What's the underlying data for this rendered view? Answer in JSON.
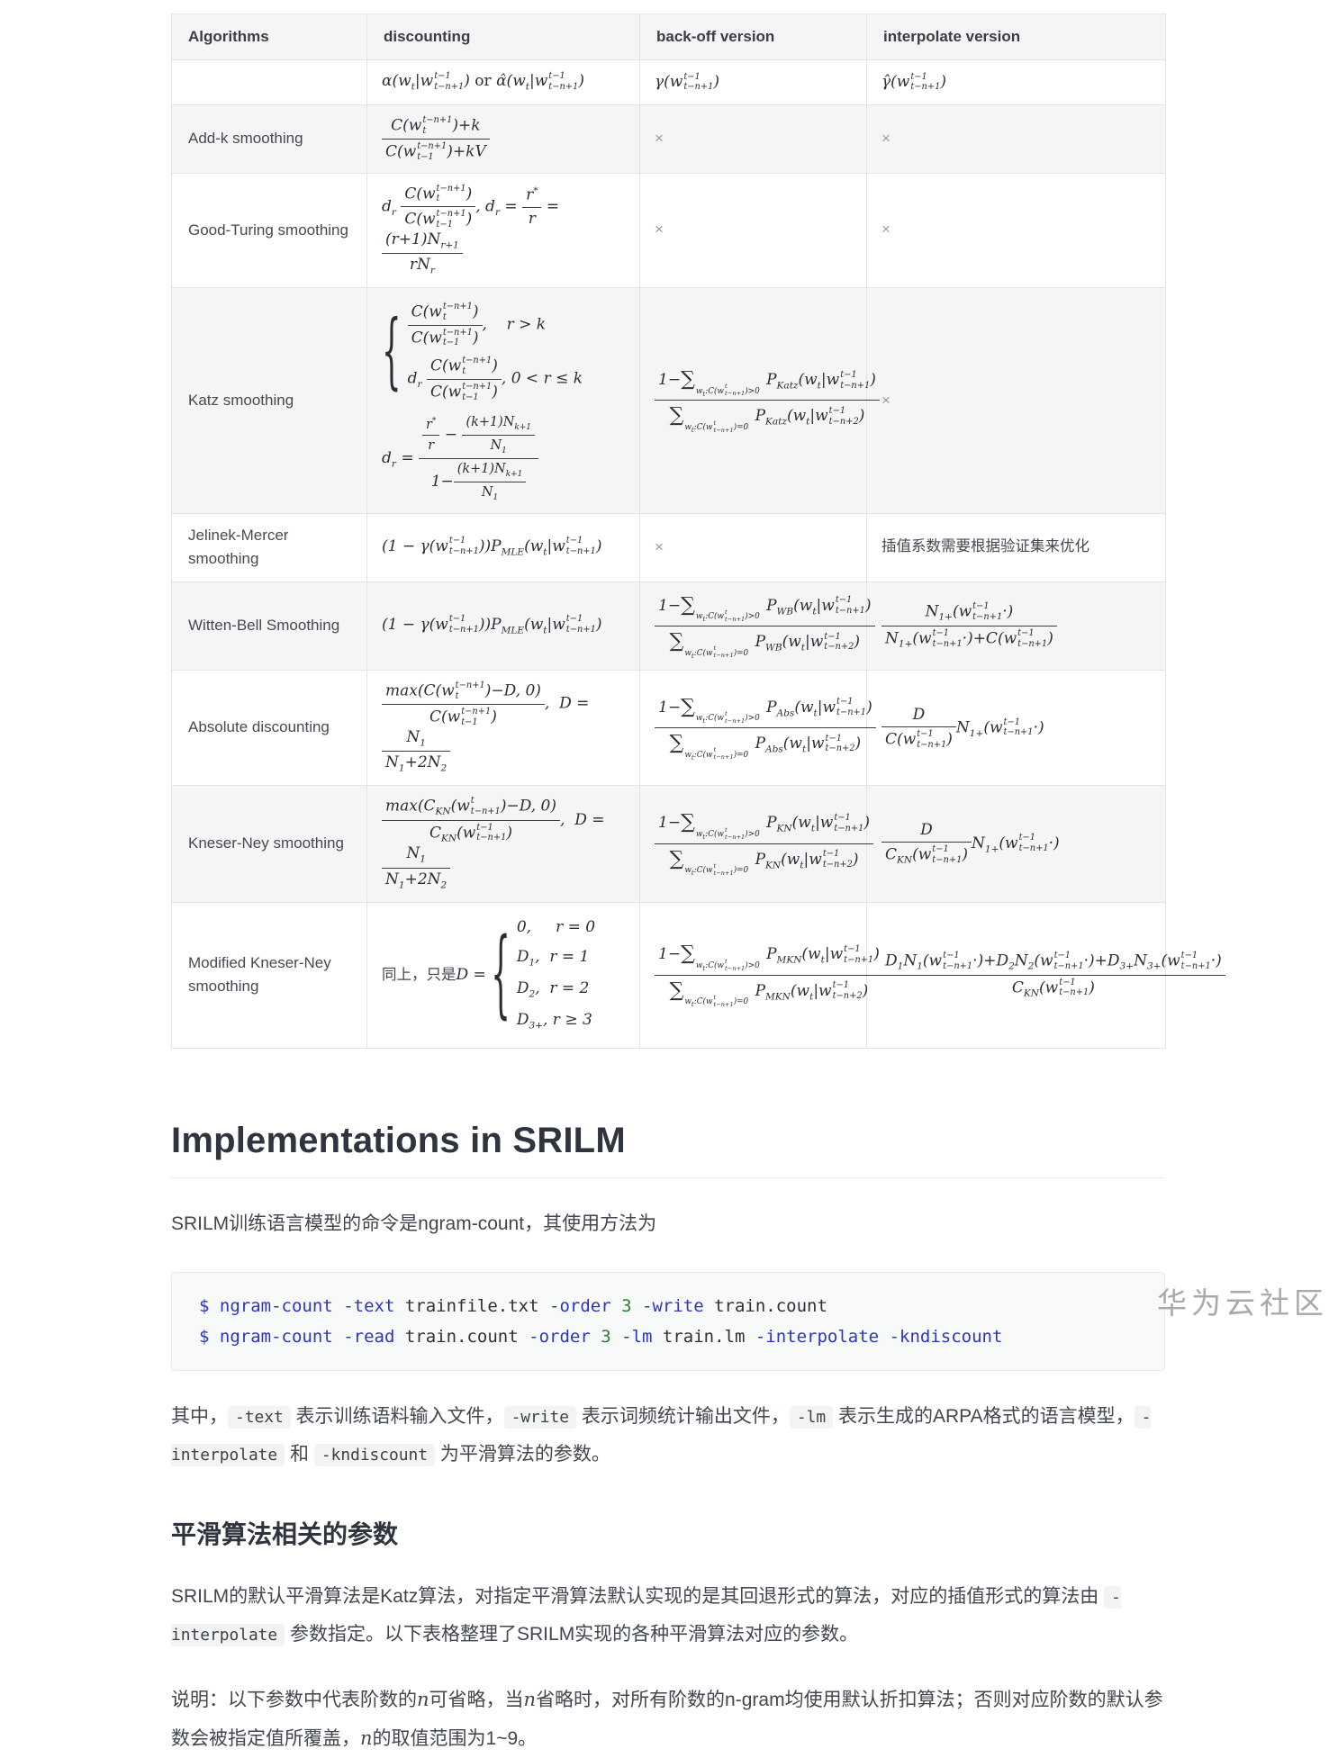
{
  "table": {
    "headers": [
      "Algorithms",
      "discounting",
      "back-off version",
      "interpolate version"
    ],
    "rows": [
      {
        "algorithm": "",
        "cells": [
          "α(w<sub>t</sub>|w<span class='ss'><span>t−1</span><span>t−n+1</span></span>) <span class='r'>or</span> α̂(w<sub>t</sub>|w<span class='ss'><span>t−1</span><span>t−n+1</span></span>)",
          "γ(w<span class='ss'><span>t−1</span><span>t−n+1</span></span>)",
          "γ̂(w<span class='ss'><span>t−1</span><span>t−n+1</span></span>)"
        ]
      },
      {
        "algorithm": "Add-k smoothing",
        "cells": [
          "<span class='fr'><span class='nu'>C(w<span class='ss'><span>t−n+1</span><span>t</span></span>)+k</span><span class='de'>C(w<span class='ss'><span>t−n+1</span><span>t−1</span></span>)+kV</span></span>",
          "<span class='x'>×</span>",
          "<span class='x'>×</span>"
        ]
      },
      {
        "algorithm": "Good-Turing smoothing",
        "cells": [
          "d<sub>r</sub> <span class='fr'><span class='nu'>C(w<span class='ss'><span>t−n+1</span><span>t</span></span>)</span><span class='de'>C(w<span class='ss'><span>t−n+1</span><span>t−1</span></span>)</span></span>, d<sub>r</sub> = <span class='fr'><span class='nu'>r<sup>*</sup></span><span class='de'>r</span></span> = <span class='fr'><span class='nu'>(r+1)N<sub>r+1</sub></span><span class='de'>rN<sub>r</sub></span></span>",
          "<span class='x'>×</span>",
          "<span class='x'>×</span>"
        ]
      },
      {
        "algorithm": "Katz smoothing",
        "cells": [
          "<div class='katz'><span class='cases'><span class='brace'>{</span><span class='cbody'><span class='cline'><span class='fr'><span class='nu'>C(w<span class='ss'><span>t−n+1</span><span>t</span></span>)</span><span class='de'>C(w<span class='ss'><span>t−n+1</span><span>t−1</span></span>)</span></span>,&nbsp;&nbsp;&nbsp;&nbsp;r &gt; k</span><span class='cline'>d<sub>r</sub> <span class='fr'><span class='nu'>C(w<span class='ss'><span>t−n+1</span><span>t</span></span>)</span><span class='de'>C(w<span class='ss'><span>t−n+1</span><span>t−1</span></span>)</span></span>,&nbsp;0 &lt; r ≤ k</span></span></span><div class='drline'>d<sub>r</sub> = <span class='fr'><span class='nu'><span class='fr'><span class='nu'>r<sup>*</sup></span><span class='de'>r</span></span> − <span class='fr'><span class='nu'>(k+1)N<sub>k+1</sub></span><span class='de'>N<sub>1</sub></span></span></span><span class='de'>1−<span class='fr'><span class='nu'>(k+1)N<sub>k+1</sub></span><span class='de'>N<sub>1</sub></span></span></span></span></div></div>",
          "<span class='fr'><span class='nu'>1−<span class='sum'>∑</span><span class='cond'>w<sub>t</sub>:C(w<span class='ss'><span>t</span><span>t−n+1</span></span>)&gt;0</span> P<sub>Katz</sub>(w<sub>t</sub>|w<span class='ss'><span>t−1</span><span>t−n+1</span></span>)</span><span class='de'><span class='sum'>∑</span><span class='cond'>w<sub>t</sub>:C(w<span class='ss'><span>t</span><span>t−n+1</span></span>)=0</span> P<sub>Katz</sub>(w<sub>t</sub>|w<span class='ss'><span>t−1</span><span>t−n+2</span></span>)</span></span>",
          "<span class='x'>×</span>"
        ]
      },
      {
        "algorithm": "Jelinek-Mercer smoothing",
        "cells": [
          "(1 − γ(w<span class='ss'><span>t−1</span><span>t−n+1</span></span>))P<sub>MLE</sub>(w<sub>t</sub>|w<span class='ss'><span>t−1</span><span>t−n+1</span></span>)",
          "<span class='x'>×</span>",
          "<span class='zh'>插值系数需要根据验证集来优化</span>"
        ]
      },
      {
        "algorithm": "Witten-Bell Smoothing",
        "cells": [
          "(1 − γ(w<span class='ss'><span>t−1</span><span>t−n+1</span></span>))P<sub>MLE</sub>(w<sub>t</sub>|w<span class='ss'><span>t−1</span><span>t−n+1</span></span>)",
          "<span class='fr'><span class='nu'>1−<span class='sum'>∑</span><span class='cond'>w<sub>t</sub>:C(w<span class='ss'><span>t</span><span>t−n+1</span></span>)&gt;0</span> P<sub>WB</sub>(w<sub>t</sub>|w<span class='ss'><span>t−1</span><span>t−n+1</span></span>)</span><span class='de'><span class='sum'>∑</span><span class='cond'>w<sub>t</sub>:C(w<span class='ss'><span>t</span><span>t−n+1</span></span>)=0</span> P<sub>WB</sub>(w<sub>t</sub>|w<span class='ss'><span>t−1</span><span>t−n+2</span></span>)</span></span>",
          "<span class='fr'><span class='nu'>N<sub>1+</sub>(w<span class='ss'><span>t−1</span><span>t−n+1</span></span>·)</span><span class='de'>N<sub>1+</sub>(w<span class='ss'><span>t−1</span><span>t−n+1</span></span>·)+C(w<span class='ss'><span>t−1</span><span>t−n+1</span></span>)</span></span>"
        ]
      },
      {
        "algorithm": "Absolute discounting",
        "cells": [
          "<span class='fr'><span class='nu'>max(C(w<span class='ss'><span>t−n+1</span><span>t</span></span>)−D, 0)</span><span class='de'>C(w<span class='ss'><span>t−n+1</span><span>t−1</span></span>)</span></span>,&nbsp; D = <span class='fr'><span class='nu'>N<sub>1</sub></span><span class='de'>N<sub>1</sub>+2N<sub>2</sub></span></span>",
          "<span class='fr'><span class='nu'>1−<span class='sum'>∑</span><span class='cond'>w<sub>t</sub>:C(w<span class='ss'><span>t</span><span>t−n+1</span></span>)&gt;0</span> P<sub>Abs</sub>(w<sub>t</sub>|w<span class='ss'><span>t−1</span><span>t−n+1</span></span>)</span><span class='de'><span class='sum'>∑</span><span class='cond'>w<sub>t</sub>:C(w<span class='ss'><span>t</span><span>t−n+1</span></span>)=0</span> P<sub>Abs</sub>(w<sub>t</sub>|w<span class='ss'><span>t−1</span><span>t−n+2</span></span>)</span></span>",
          "<span class='fr'><span class='nu'>D</span><span class='de'>C(w<span class='ss'><span>t−1</span><span>t−n+1</span></span>)</span></span>N<sub>1+</sub>(w<span class='ss'><span>t−1</span><span>t−n+1</span></span>·)"
        ]
      },
      {
        "algorithm": "Kneser-Ney smoothing",
        "cells": [
          "<span class='fr'><span class='nu'>max(C<sub>KN</sub>(w<span class='ss'><span>t</span><span>t−n+1</span></span>)−D, 0)</span><span class='de'>C<sub>KN</sub>(w<span class='ss'><span>t−1</span><span>t−n+1</span></span>)</span></span>,&nbsp; D = <span class='fr'><span class='nu'>N<sub>1</sub></span><span class='de'>N<sub>1</sub>+2N<sub>2</sub></span></span>",
          "<span class='fr'><span class='nu'>1−<span class='sum'>∑</span><span class='cond'>w<sub>t</sub>:C(w<span class='ss'><span>t</span><span>t−n+1</span></span>)&gt;0</span> P<sub>KN</sub>(w<sub>t</sub>|w<span class='ss'><span>t−1</span><span>t−n+1</span></span>)</span><span class='de'><span class='sum'>∑</span><span class='cond'>w<sub>t</sub>:C(w<span class='ss'><span>t</span><span>t−n+1</span></span>)=0</span> P<sub>KN</sub>(w<sub>t</sub>|w<span class='ss'><span>t−1</span><span>t−n+2</span></span>)</span></span>",
          "<span class='fr'><span class='nu'>D</span><span class='de'>C<sub>KN</sub>(w<span class='ss'><span>t−1</span><span>t−n+1</span></span>)</span></span>N<sub>1+</sub>(w<span class='ss'><span>t−1</span><span>t−n+1</span></span>·)"
        ]
      },
      {
        "algorithm": "Modified Kneser-Ney smoothing",
        "cells": [
          "<span class='zh'>同上，只是</span>D = <span class='cases c4'><span class='brace'>{</span><span class='cbody'><span class='cline'>0,&nbsp;&nbsp;&nbsp;&nbsp;&nbsp;r = 0</span><span class='cline'>D<sub>1</sub>,&nbsp;&nbsp;r = 1</span><span class='cline'>D<sub>2</sub>,&nbsp;&nbsp;r = 2</span><span class='cline'>D<sub>3+</sub>, r ≥ 3</span></span></span>",
          "<span class='fr'><span class='nu'>1−<span class='sum'>∑</span><span class='cond'>w<sub>t</sub>:C(w<span class='ss'><span>t</span><span>t−n+1</span></span>)&gt;0</span> P<sub>MKN</sub>(w<sub>t</sub>|w<span class='ss'><span>t−1</span><span>t−n+1</span></span>)</span><span class='de'><span class='sum'>∑</span><span class='cond'>w<sub>t</sub>:C(w<span class='ss'><span>t</span><span>t−n+1</span></span>)=0</span> P<sub>MKN</sub>(w<sub>t</sub>|w<span class='ss'><span>t−1</span><span>t−n+2</span></span>)</span></span>",
          "<span class='fr'><span class='nu'>D<sub>1</sub>N<sub>1</sub>(w<span class='ss'><span>t−1</span><span>t−n+1</span></span>·)+D<sub>2</sub>N<sub>2</sub>(w<span class='ss'><span>t−1</span><span>t−n+1</span></span>·)+D<sub>3+</sub>N<sub>3+</sub>(w<span class='ss'><span>t−1</span><span>t−n+1</span></span>·)</span><span class='de'>C<sub>KN</sub>(w<span class='ss'><span>t−1</span><span>t−n+1</span></span>)</span></span>"
        ]
      }
    ]
  },
  "heading": "Implementations in SRILM",
  "subheading": "平滑算法相关的参数",
  "paragraphs": {
    "intro": "SRILM训练语言模型的命令是ngram-count，其使用方法为",
    "options": "其中，<code>-text</code> 表示训练语料输入文件，<code>-write</code> 表示词频统计输出文件，<code>-lm</code> 表示生成的ARPA格式的语言模型，<code>-interpolate</code> 和 <code>-kndiscount</code> 为平滑算法的参数。",
    "default_algo": "SRILM的默认平滑算法是Katz算法，对指定平滑算法默认实现的是其回退形式的算法，对应的插值形式的算法由 <code>-interpolate</code> 参数指定。以下表格整理了SRILM实现的各种平滑算法对应的参数。",
    "note": "说明：以下参数中代表阶数的<i class='mi'>n</i>可省略，当<i class='mi'>n</i>省略时，对所有阶数的n-gram均使用默认折扣算法；否则对应阶数的默认参数会被指定值所覆盖，<i class='mi'>n</i>的取值范围为1~9。"
  },
  "code_block": {
    "lines": [
      "<span class='kw'>$</span> <span class='kw'>ngram-count</span> <span class='kw'>-text</span> trainfile.txt <span class='kw'>-order</span> <span class='num'>3</span> <span class='kw'>-write</span> train.count",
      "<span class='kw'>$</span> <span class='kw'>ngram-count</span> <span class='kw'>-read</span> train.count <span class='kw'>-order</span> <span class='num'>3</span> <span class='kw'>-lm</span> train.lm <span class='kw'>-interpolate</span> <span class='kw'>-kndiscount</span>"
    ]
  },
  "watermark": "华为云社区",
  "colors": {
    "keyword_blue": "#2d35c0",
    "number_green": "#2e7d36",
    "table_stripe": "#f5f5f6",
    "table_border": "#e2e3e6",
    "watermark_gray": "#a9a9a9"
  }
}
